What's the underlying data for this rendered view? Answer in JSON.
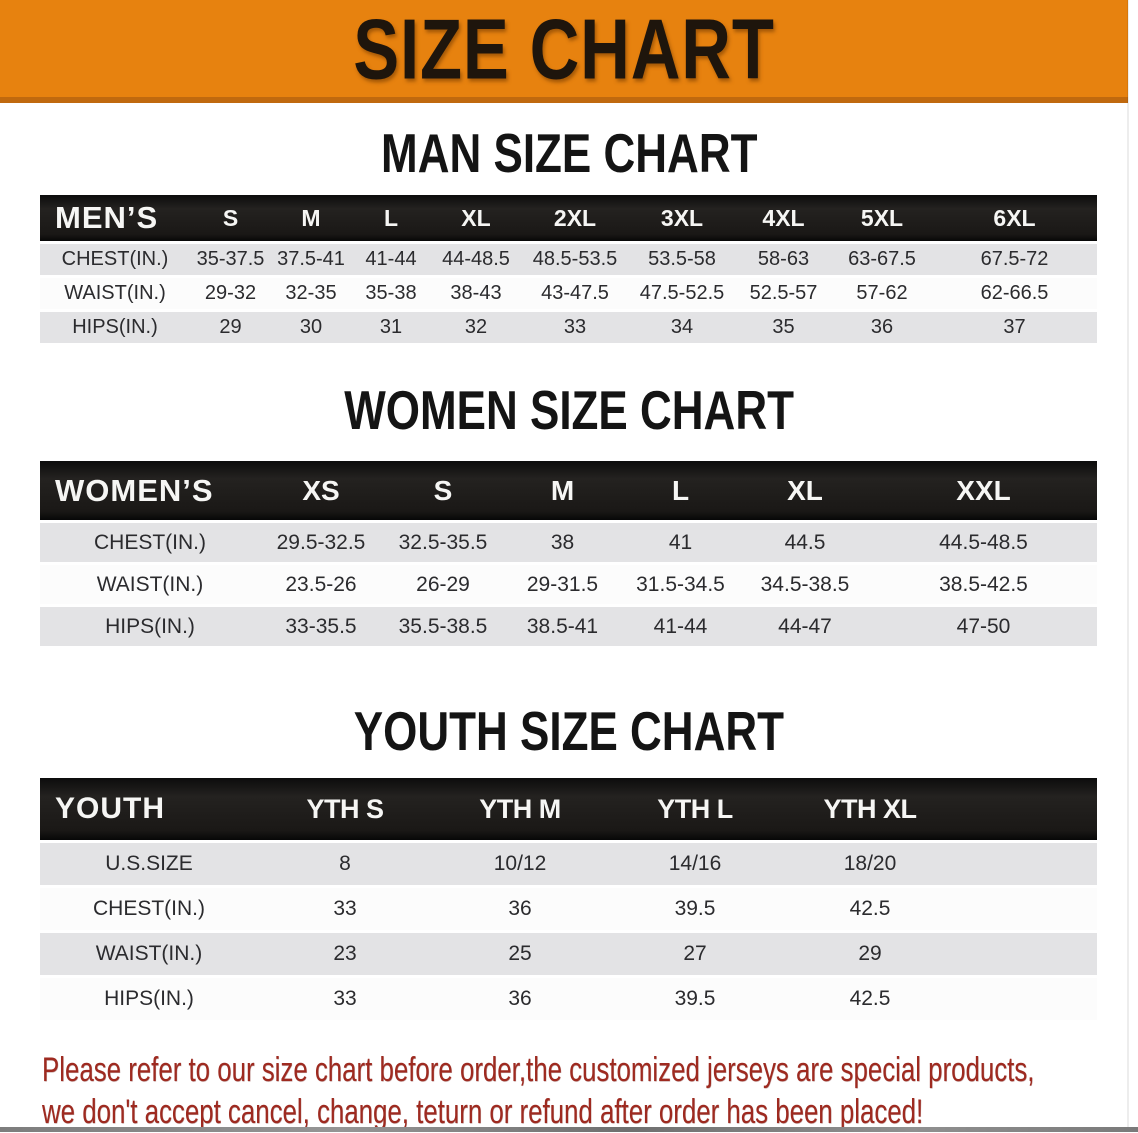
{
  "banner": {
    "title": "SIZE CHART",
    "bg_color": "#E7820F",
    "bottom_border_color": "#C0690E",
    "title_color": "#1E150C"
  },
  "sections": [
    {
      "heading": "MAN SIZE CHART",
      "table": {
        "corner_label": "MEN’S",
        "size_headers": [
          "S",
          "M",
          "L",
          "XL",
          "2XL",
          "3XL",
          "4XL",
          "5XL",
          "6XL"
        ],
        "rows": [
          {
            "label": "CHEST(IN.)",
            "values": [
              "35-37.5",
              "37.5-41",
              "41-44",
              "44-48.5",
              "48.5-53.5",
              "53.5-58",
              "58-63",
              "63-67.5",
              "67.5-72"
            ]
          },
          {
            "label": "WAIST(IN.)",
            "values": [
              "29-32",
              "32-35",
              "35-38",
              "38-43",
              "43-47.5",
              "47.5-52.5",
              "52.5-57",
              "57-62",
              "62-66.5"
            ]
          },
          {
            "label": "HIPS(IN.)",
            "values": [
              "29",
              "30",
              "31",
              "32",
              "33",
              "34",
              "35",
              "36",
              "37"
            ]
          }
        ]
      }
    },
    {
      "heading": "WOMEN SIZE CHART",
      "table": {
        "corner_label": "WOMEN’S",
        "size_headers": [
          "XS",
          "S",
          "M",
          "L",
          "XL",
          "XXL"
        ],
        "rows": [
          {
            "label": "CHEST(IN.)",
            "values": [
              "29.5-32.5",
              "32.5-35.5",
              "38",
              "41",
              "44.5",
              "44.5-48.5"
            ]
          },
          {
            "label": "WAIST(IN.)",
            "values": [
              "23.5-26",
              "26-29",
              "29-31.5",
              "31.5-34.5",
              "34.5-38.5",
              "38.5-42.5"
            ]
          },
          {
            "label": "HIPS(IN.)",
            "values": [
              "33-35.5",
              "35.5-38.5",
              "38.5-41",
              "41-44",
              "44-47",
              "47-50"
            ]
          }
        ]
      }
    },
    {
      "heading": "YOUTH SIZE CHART",
      "table": {
        "corner_label": "YOUTH",
        "size_headers": [
          "YTH S",
          "YTH M",
          "YTH L",
          "YTH XL"
        ],
        "rows": [
          {
            "label": "U.S.SIZE",
            "values": [
              "8",
              "10/12",
              "14/16",
              "18/20"
            ]
          },
          {
            "label": "CHEST(IN.)",
            "values": [
              "33",
              "36",
              "39.5",
              "42.5"
            ]
          },
          {
            "label": "WAIST(IN.)",
            "values": [
              "23",
              "25",
              "27",
              "29"
            ]
          },
          {
            "label": "HIPS(IN.)",
            "values": [
              "33",
              "36",
              "39.5",
              "42.5"
            ]
          }
        ]
      }
    }
  ],
  "disclaimer": {
    "line1": "Please refer to our size chart before order,the customized jerseys are special products,",
    "line2": "we don't accept cancel, change, teturn or refund after order has been placed!",
    "text_color": "#9E2A20"
  },
  "colors": {
    "header_band": "#191715",
    "row_shade": "#E3E3E5",
    "row_plain": "#FCFCFC"
  }
}
